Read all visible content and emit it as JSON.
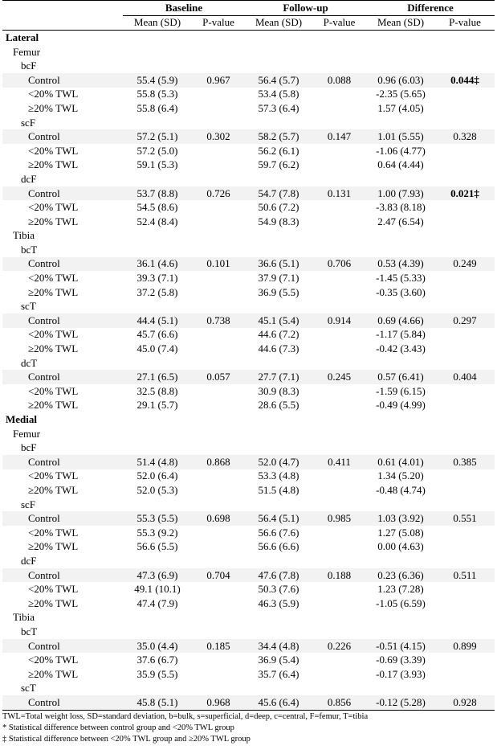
{
  "headers": {
    "groups": [
      "Baseline",
      "Follow-up",
      "Difference"
    ],
    "sub": [
      "Mean (SD)",
      "P-value",
      "Mean (SD)",
      "P-value",
      "Mean (SD)",
      "P-value"
    ]
  },
  "rows": [
    {
      "level": 0,
      "label": "Lateral",
      "shade": false
    },
    {
      "level": 1,
      "label": "Femur",
      "shade": false
    },
    {
      "level": 2,
      "label": "bcF",
      "shade": false
    },
    {
      "level": 3,
      "label": "Control",
      "shade": true,
      "cells": [
        "55.4 (5.9)",
        "0.967",
        "56.4 (5.7)",
        "0.088",
        "0.96 (6.03)",
        "0.044‡"
      ],
      "bold": [
        5
      ]
    },
    {
      "level": 3,
      "label": "<20% TWL",
      "shade": false,
      "cells": [
        "55.8 (5.3)",
        "",
        "53.4 (5.8)",
        "",
        "-2.35 (5.65)",
        ""
      ]
    },
    {
      "level": 3,
      "label": "≥20% TWL",
      "shade": false,
      "cells": [
        "55.8 (6.4)",
        "",
        "57.3 (6.4)",
        "",
        "1.57 (4.05)",
        ""
      ]
    },
    {
      "level": 2,
      "label": "scF",
      "shade": false
    },
    {
      "level": 3,
      "label": "Control",
      "shade": true,
      "cells": [
        "57.2 (5.1)",
        "0.302",
        "58.2 (5.7)",
        "0.147",
        "1.01 (5.55)",
        "0.328"
      ]
    },
    {
      "level": 3,
      "label": "<20% TWL",
      "shade": false,
      "cells": [
        "57.2 (5.0)",
        "",
        "56.2 (6.1)",
        "",
        "-1.06 (4.77)",
        ""
      ]
    },
    {
      "level": 3,
      "label": "≥20% TWL",
      "shade": false,
      "cells": [
        "59.1 (5.3)",
        "",
        "59.7 (6.2)",
        "",
        "0.64 (4.44)",
        ""
      ]
    },
    {
      "level": 2,
      "label": "dcF",
      "shade": false
    },
    {
      "level": 3,
      "label": "Control",
      "shade": true,
      "cells": [
        "53.7 (8.8)",
        "0.726",
        "54.7 (7.8)",
        "0.131",
        "1.00 (7.93)",
        "0.021‡"
      ],
      "bold": [
        5
      ]
    },
    {
      "level": 3,
      "label": "<20% TWL",
      "shade": false,
      "cells": [
        "54.5 (8.6)",
        "",
        "50.6 (7.2)",
        "",
        "-3.83 (8.18)",
        ""
      ]
    },
    {
      "level": 3,
      "label": "≥20% TWL",
      "shade": false,
      "cells": [
        "52.4 (8.4)",
        "",
        "54.9 (8.3)",
        "",
        "2.47 (6.54)",
        ""
      ]
    },
    {
      "level": 1,
      "label": "Tibia",
      "shade": false
    },
    {
      "level": 2,
      "label": "bcT",
      "shade": false
    },
    {
      "level": 3,
      "label": "Control",
      "shade": true,
      "cells": [
        "36.1 (4.6)",
        "0.101",
        "36.6 (5.1)",
        "0.706",
        "0.53 (4.39)",
        "0.249"
      ]
    },
    {
      "level": 3,
      "label": "<20% TWL",
      "shade": false,
      "cells": [
        "39.3 (7.1)",
        "",
        "37.9 (7.1)",
        "",
        "-1.45 (5.33)",
        ""
      ]
    },
    {
      "level": 3,
      "label": "≥20% TWL",
      "shade": false,
      "cells": [
        "37.2 (5.8)",
        "",
        "36.9 (5.5)",
        "",
        "-0.35 (3.60)",
        ""
      ]
    },
    {
      "level": 2,
      "label": "scT",
      "shade": false
    },
    {
      "level": 3,
      "label": "Control",
      "shade": true,
      "cells": [
        "44.4 (5.1)",
        "0.738",
        "45.1 (5.4)",
        "0.914",
        "0.69 (4.66)",
        "0.297"
      ]
    },
    {
      "level": 3,
      "label": "<20% TWL",
      "shade": false,
      "cells": [
        "45.7 (6.6)",
        "",
        "44.6 (7.2)",
        "",
        "-1.17 (5.84)",
        ""
      ]
    },
    {
      "level": 3,
      "label": "≥20% TWL",
      "shade": false,
      "cells": [
        "45.0 (7.4)",
        "",
        "44.6 (7.3)",
        "",
        "-0.42 (3.43)",
        ""
      ]
    },
    {
      "level": 2,
      "label": "dcT",
      "shade": false
    },
    {
      "level": 3,
      "label": "Control",
      "shade": true,
      "cells": [
        "27.1 (6.5)",
        "0.057",
        "27.7 (7.1)",
        "0.245",
        "0.57 (6.41)",
        "0.404"
      ]
    },
    {
      "level": 3,
      "label": "<20% TWL",
      "shade": false,
      "cells": [
        "32.5 (8.8)",
        "",
        "30.9 (8.3)",
        "",
        "-1.59 (6.15)",
        ""
      ]
    },
    {
      "level": 3,
      "label": "≥20% TWL",
      "shade": false,
      "cells": [
        "29.1 (5.7)",
        "",
        "28.6 (5.5)",
        "",
        "-0.49 (4.99)",
        ""
      ]
    },
    {
      "level": 0,
      "label": "Medial",
      "shade": false
    },
    {
      "level": 1,
      "label": "Femur",
      "shade": false
    },
    {
      "level": 2,
      "label": "bcF",
      "shade": false
    },
    {
      "level": 3,
      "label": "Control",
      "shade": true,
      "cells": [
        "51.4 (4.8)",
        "0.868",
        "52.0 (4.7)",
        "0.411",
        "0.61 (4.01)",
        "0.385"
      ]
    },
    {
      "level": 3,
      "label": "<20% TWL",
      "shade": false,
      "cells": [
        "52.0 (6.4)",
        "",
        "53.3 (4.8)",
        "",
        "1.34 (5.20)",
        ""
      ]
    },
    {
      "level": 3,
      "label": "≥20% TWL",
      "shade": false,
      "cells": [
        "52.0 (5.3)",
        "",
        "51.5 (4.8)",
        "",
        "-0.48 (4.74)",
        ""
      ]
    },
    {
      "level": 2,
      "label": "scF",
      "shade": false
    },
    {
      "level": 3,
      "label": "Control",
      "shade": true,
      "cells": [
        "55.3 (5.5)",
        "0.698",
        "56.4 (5.1)",
        "0.985",
        "1.03 (3.92)",
        "0.551"
      ]
    },
    {
      "level": 3,
      "label": "<20% TWL",
      "shade": false,
      "cells": [
        "55.3 (9.2)",
        "",
        "56.6 (7.6)",
        "",
        "1.27 (5.08)",
        ""
      ]
    },
    {
      "level": 3,
      "label": "≥20% TWL",
      "shade": false,
      "cells": [
        "56.6 (5.5)",
        "",
        "56.6 (6.6)",
        "",
        "0.00 (4.63)",
        ""
      ]
    },
    {
      "level": 2,
      "label": "dcF",
      "shade": false
    },
    {
      "level": 3,
      "label": "Control",
      "shade": true,
      "cells": [
        "47.3 (6.9)",
        "0.704",
        "47.6 (7.8)",
        "0.188",
        "0.23 (6.36)",
        "0.511"
      ]
    },
    {
      "level": 3,
      "label": "<20% TWL",
      "shade": false,
      "cells": [
        "49.1 (10.1)",
        "",
        "50.3 (7.6)",
        "",
        "1.23 (7.28)",
        ""
      ]
    },
    {
      "level": 3,
      "label": "≥20% TWL",
      "shade": false,
      "cells": [
        "47.4 (7.9)",
        "",
        "46.3 (5.9)",
        "",
        "-1.05 (6.59)",
        ""
      ]
    },
    {
      "level": 1,
      "label": "Tibia",
      "shade": false
    },
    {
      "level": 2,
      "label": "bcT",
      "shade": false
    },
    {
      "level": 3,
      "label": "Control",
      "shade": true,
      "cells": [
        "35.0 (4.4)",
        "0.185",
        "34.4 (4.8)",
        "0.226",
        "-0.51 (4.15)",
        "0.899"
      ]
    },
    {
      "level": 3,
      "label": "<20% TWL",
      "shade": false,
      "cells": [
        "37.6 (6.7)",
        "",
        "36.9 (5.4)",
        "",
        "-0.69 (3.39)",
        ""
      ]
    },
    {
      "level": 3,
      "label": "≥20% TWL",
      "shade": false,
      "cells": [
        "35.9 (5.5)",
        "",
        "35.7 (6.4)",
        "",
        "-0.17 (3.93)",
        ""
      ]
    },
    {
      "level": 2,
      "label": "scT",
      "shade": false
    },
    {
      "level": 3,
      "label": "Control",
      "shade": true,
      "cells": [
        "45.8 (5.1)",
        "0.968",
        "45.6 (6.4)",
        "0.856",
        "-0.12 (5.28)",
        "0.928"
      ]
    }
  ],
  "notes": [
    "TWL=Total weight loss, SD=standard deviation, b=bulk, s=superficial, d=deep, c=central, F=femur, T=tibia",
    "* Statistical difference between control group and <20% TWL group",
    "‡ Statistical difference between <20% TWL group and ≥20% TWL group"
  ]
}
